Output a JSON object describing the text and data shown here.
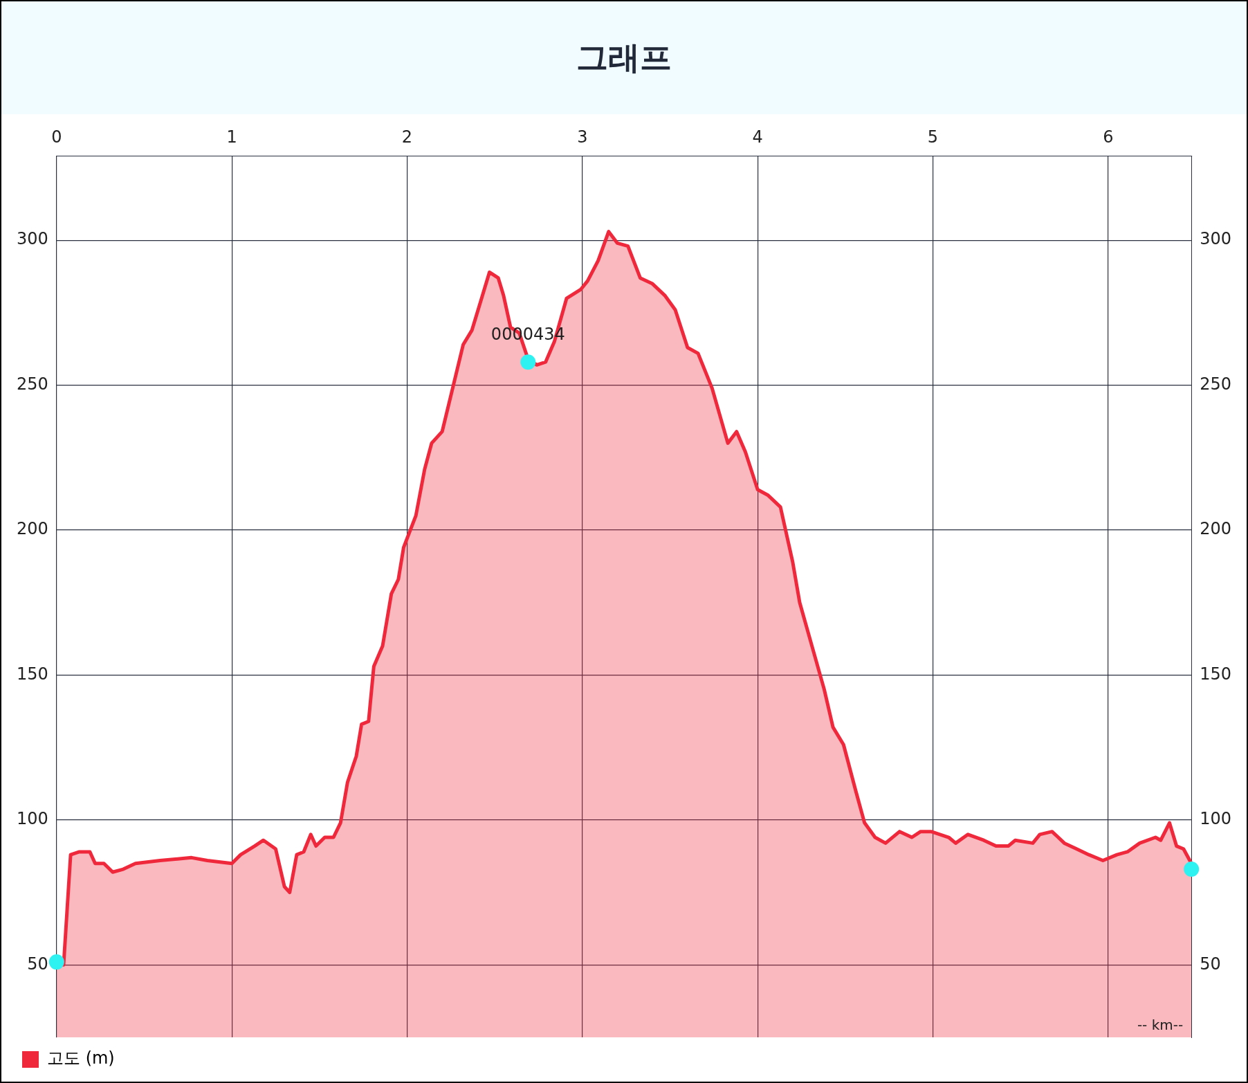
{
  "chart_data": {
    "type": "area",
    "title": "그래프",
    "xlabel": "-- km--",
    "xlim": [
      0,
      6.475
    ],
    "xticks": [
      0,
      1,
      2,
      3,
      4,
      5,
      6
    ],
    "ylim": [
      25,
      329
    ],
    "yticks": [
      50,
      100,
      150,
      200,
      250,
      300
    ],
    "y2lim": [
      25,
      329
    ],
    "y2ticks": [
      50,
      100,
      150,
      200,
      250,
      300
    ],
    "grid": true,
    "legend": "bottom left",
    "annotations": [
      {
        "text": "0000434",
        "x": 2.69,
        "y": 258
      }
    ],
    "series": [
      {
        "name": "고도 (m)",
        "color": "#f0283c",
        "marker": "none",
        "x": [
          0,
          0.04,
          0.08,
          0.13,
          0.19,
          0.22,
          0.27,
          0.32,
          0.38,
          0.45,
          0.59,
          0.77,
          0.86,
          1.0,
          1.05,
          1.13,
          1.18,
          1.25,
          1.3,
          1.33,
          1.37,
          1.41,
          1.45,
          1.48,
          1.53,
          1.58,
          1.62,
          1.66,
          1.71,
          1.74,
          1.78,
          1.81,
          1.86,
          1.91,
          1.95,
          1.98,
          2.05,
          2.1,
          2.14,
          2.2,
          2.26,
          2.32,
          2.37,
          2.42,
          2.47,
          2.52,
          2.55,
          2.59,
          2.64,
          2.69,
          2.74,
          2.79,
          2.84,
          2.91,
          2.99,
          3.03,
          3.09,
          3.15,
          3.2,
          3.26,
          3.33,
          3.4,
          3.47,
          3.53,
          3.6,
          3.66,
          3.74,
          3.83,
          3.88,
          3.93,
          4.0,
          4.06,
          4.13,
          4.2,
          4.24,
          4.31,
          4.38,
          4.43,
          4.49,
          4.56,
          4.61,
          4.67,
          4.73,
          4.81,
          4.88,
          4.93,
          4.99,
          5.09,
          5.13,
          5.2,
          5.29,
          5.36,
          5.43,
          5.47,
          5.57,
          5.61,
          5.68,
          5.75,
          5.82,
          5.89,
          5.97,
          6.05,
          6.11,
          6.18,
          6.27,
          6.3,
          6.35,
          6.39,
          6.43,
          6.475
        ],
        "values": [
          50,
          50,
          88,
          89,
          89,
          85,
          85,
          82,
          83,
          85,
          86,
          87,
          86,
          85,
          88,
          91,
          93,
          90,
          77,
          75,
          88,
          89,
          95,
          91,
          94,
          94,
          99,
          113,
          122,
          133,
          134,
          153,
          160,
          178,
          183,
          194,
          205,
          221,
          230,
          234,
          249,
          264,
          269,
          279,
          289,
          287,
          281,
          270,
          268,
          259,
          257,
          258,
          265,
          280,
          283,
          286,
          293,
          303,
          299,
          298,
          287,
          285,
          281,
          276,
          263,
          261,
          249,
          230,
          234,
          227,
          214,
          212,
          208,
          189,
          175,
          160,
          145,
          132,
          126,
          110,
          99,
          94,
          92,
          96,
          94,
          96,
          96,
          94,
          92,
          95,
          93,
          91,
          91,
          93,
          92,
          95,
          96,
          92,
          90,
          88,
          86,
          88,
          89,
          92,
          94,
          93,
          99,
          91,
          90,
          85
        ]
      },
      {
        "type": "scatter",
        "color": "#2ef2f2",
        "marker": "circle",
        "x": [
          0,
          2.69,
          6.475
        ],
        "values": [
          51,
          258,
          83
        ]
      }
    ]
  }
}
